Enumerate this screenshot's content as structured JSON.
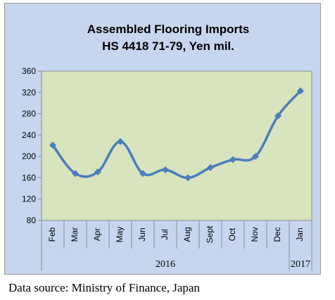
{
  "chart_data": {
    "type": "line",
    "title": "Assembled Flooring Imports",
    "subtitle": "HS 4418 71-79, Yen mil.",
    "xlabel": "",
    "ylabel": "",
    "categories": [
      "Feb",
      "Mar",
      "Apr",
      "May",
      "Jun",
      "Jul",
      "Aug",
      "Sept",
      "Oct",
      "Nov",
      "Dec",
      "Jan"
    ],
    "year_groups": [
      {
        "label": "2016",
        "from": 0,
        "to": 10
      },
      {
        "label": "2017",
        "from": 11,
        "to": 11
      }
    ],
    "series": [
      {
        "values": [
          221,
          168,
          171,
          228,
          168,
          175,
          160,
          179,
          194,
          200,
          276,
          323
        ]
      }
    ],
    "ylim": [
      80,
      360
    ],
    "yticks": [
      80,
      120,
      160,
      200,
      240,
      280,
      320,
      360
    ],
    "grid": false,
    "legend": "none",
    "colors": {
      "line": "#4a7ebb",
      "plot_background": "#d7e4bd",
      "chart_background": "#c6d6ee"
    }
  },
  "source_note": "Data source: Ministry of Finance, Japan"
}
